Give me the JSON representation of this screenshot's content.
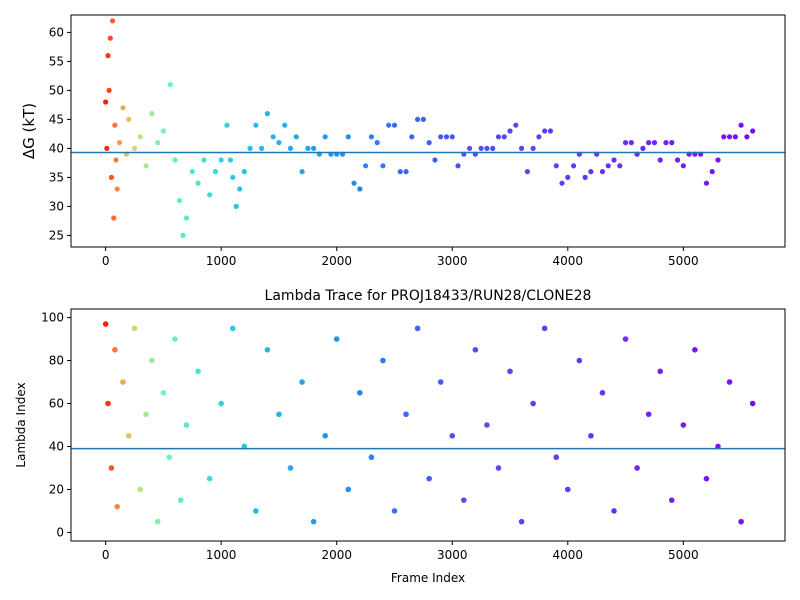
{
  "chart_data": [
    {
      "type": "scatter",
      "title": "",
      "xlabel": "",
      "ylabel": "ΔG (kT)",
      "xlim": [
        -300,
        5880
      ],
      "ylim": [
        23,
        63
      ],
      "xticks": [
        0,
        1000,
        2000,
        3000,
        4000,
        5000
      ],
      "yticks": [
        25,
        30,
        35,
        40,
        45,
        50,
        55,
        60
      ],
      "hline": 39.3,
      "colormap": "rainbow",
      "color_by": "x",
      "series": [
        {
          "x": [
            0,
            10,
            20,
            30,
            40,
            50,
            60,
            70,
            80,
            90,
            100,
            120,
            150,
            180,
            200,
            250,
            300,
            350,
            400,
            450,
            500,
            560,
            600,
            640,
            670,
            700,
            750,
            800,
            850,
            900,
            950,
            1000,
            1050,
            1080,
            1100,
            1130,
            1160,
            1200,
            1250,
            1300,
            1350,
            1400,
            1450,
            1500,
            1550,
            1600,
            1650,
            1700,
            1750,
            1800,
            1850,
            1900,
            1950,
            2000,
            2050,
            2100,
            2150,
            2200,
            2250,
            2300,
            2350,
            2400,
            2450,
            2500,
            2550,
            2600,
            2650,
            2700,
            2750,
            2800,
            2850,
            2900,
            2950,
            3000,
            3050,
            3100,
            3150,
            3200,
            3250,
            3300,
            3350,
            3400,
            3450,
            3500,
            3550,
            3600,
            3650,
            3700,
            3750,
            3800,
            3850,
            3900,
            3950,
            4000,
            4050,
            4100,
            4150,
            4200,
            4250,
            4300,
            4350,
            4400,
            4450,
            4500,
            4550,
            4600,
            4650,
            4700,
            4750,
            4800,
            4850,
            4900,
            4950,
            5000,
            5050,
            5100,
            5150,
            5200,
            5250,
            5300,
            5350,
            5400,
            5450,
            5500,
            5550,
            5600
          ],
          "y": [
            48,
            40,
            56,
            50,
            59,
            35,
            62,
            28,
            44,
            38,
            33,
            41,
            47,
            39,
            45,
            40,
            42,
            37,
            46,
            41,
            43,
            51,
            38,
            31,
            25,
            28,
            36,
            34,
            38,
            32,
            36,
            38,
            44,
            38,
            35,
            30,
            33,
            36,
            40,
            44,
            40,
            46,
            42,
            41,
            44,
            40,
            42,
            36,
            40,
            40,
            39,
            42,
            39,
            39,
            39,
            42,
            34,
            33,
            37,
            42,
            41,
            37,
            44,
            44,
            36,
            36,
            42,
            45,
            45,
            41,
            38,
            42,
            42,
            42,
            37,
            39,
            40,
            39,
            40,
            40,
            40,
            42,
            42,
            43,
            44,
            40,
            36,
            40,
            42,
            43,
            43,
            37,
            34,
            35,
            37,
            39,
            35,
            36,
            39,
            36,
            37,
            38,
            37,
            41,
            41,
            39,
            40,
            41,
            41,
            38,
            41,
            41,
            38,
            37,
            39,
            39,
            39,
            34,
            36,
            38,
            42,
            42,
            42,
            44,
            42,
            43
          ]
        }
      ]
    },
    {
      "type": "scatter",
      "title": "Lambda Trace for PROJ18433/RUN28/CLONE28",
      "xlabel": "Frame Index",
      "ylabel": "Lambda Index",
      "xlim": [
        -300,
        5880
      ],
      "ylim": [
        -4,
        104
      ],
      "xticks": [
        0,
        1000,
        2000,
        3000,
        4000,
        5000
      ],
      "yticks": [
        0,
        20,
        40,
        60,
        80,
        100
      ],
      "hline": 39,
      "colormap": "rainbow",
      "color_by": "x",
      "series": [
        {
          "x": [
            0,
            20,
            50,
            80,
            100,
            150,
            200,
            250,
            300,
            350,
            400,
            450,
            500,
            550,
            600,
            650,
            700,
            800,
            900,
            1000,
            1100,
            1200,
            1300,
            1400,
            1500,
            1600,
            1700,
            1800,
            1900,
            2000,
            2100,
            2200,
            2300,
            2400,
            2500,
            2600,
            2700,
            2800,
            2900,
            3000,
            3100,
            3200,
            3300,
            3400,
            3500,
            3600,
            3700,
            3800,
            3900,
            4000,
            4100,
            4200,
            4300,
            4400,
            4500,
            4600,
            4700,
            4800,
            4900,
            5000,
            5100,
            5200,
            5300,
            5400,
            5500,
            5600
          ],
          "y": [
            97,
            60,
            30,
            85,
            12,
            70,
            45,
            95,
            20,
            55,
            80,
            5,
            65,
            35,
            90,
            15,
            50,
            75,
            25,
            60,
            95,
            40,
            10,
            85,
            55,
            30,
            70,
            5,
            45,
            90,
            20,
            65,
            35,
            80,
            10,
            55,
            95,
            25,
            70,
            45,
            15,
            85,
            50,
            30,
            75,
            5,
            60,
            95,
            35,
            20,
            80,
            45,
            65,
            10,
            90,
            30,
            55,
            75,
            15,
            50,
            85,
            25,
            40,
            70,
            5,
            60
          ]
        }
      ]
    }
  ]
}
